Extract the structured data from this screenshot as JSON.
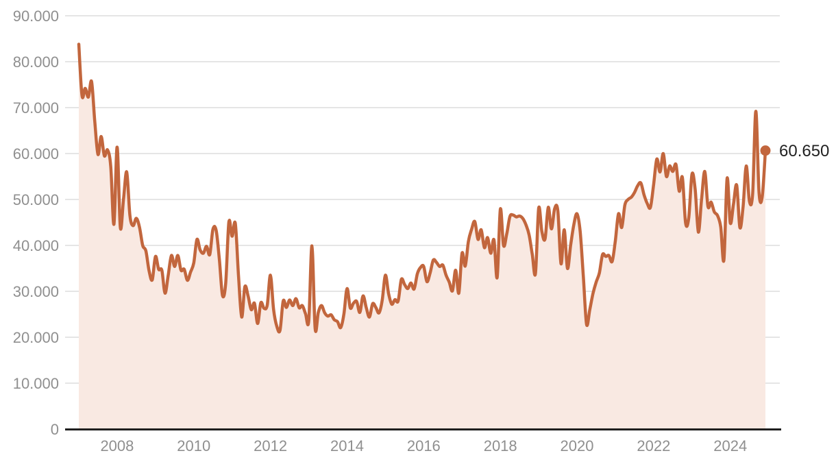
{
  "chart_data": {
    "type": "area",
    "title": "",
    "series_name": "monthly-price-series",
    "frequency": "monthly",
    "start_period": "2007-01",
    "end_period": "2024-12",
    "values": [
      83800,
      72600,
      74200,
      72300,
      75700,
      67000,
      59800,
      63700,
      59500,
      60800,
      57200,
      44600,
      61400,
      43900,
      50000,
      56000,
      46500,
      44300,
      45900,
      44000,
      40000,
      38800,
      34500,
      32500,
      37600,
      34800,
      34600,
      29600,
      33500,
      37800,
      35400,
      37800,
      34600,
      34800,
      32400,
      34200,
      36200,
      41300,
      39000,
      38300,
      39800,
      38000,
      43500,
      43300,
      37000,
      29100,
      31800,
      45100,
      42000,
      44800,
      33500,
      24400,
      31000,
      29000,
      26000,
      27400,
      23000,
      27500,
      26300,
      27000,
      33500,
      26000,
      22400,
      21500,
      27900,
      26500,
      28100,
      26900,
      28400,
      26400,
      26900,
      25100,
      23600,
      39900,
      21900,
      25400,
      26900,
      25300,
      24600,
      24900,
      23800,
      23400,
      22100,
      25000,
      30600,
      26400,
      27400,
      27800,
      25400,
      29000,
      26500,
      24400,
      27300,
      26500,
      25300,
      28000,
      33500,
      29500,
      27200,
      28200,
      27900,
      32600,
      31500,
      30600,
      31800,
      30500,
      33800,
      35200,
      35400,
      32100,
      34000,
      36800,
      36300,
      35400,
      35700,
      33500,
      32000,
      30100,
      34600,
      29600,
      38300,
      35500,
      40900,
      43500,
      45200,
      41300,
      43400,
      39500,
      41700,
      38300,
      41200,
      33000,
      47900,
      40000,
      42500,
      46300,
      46600,
      46200,
      46400,
      45900,
      44500,
      42300,
      38000,
      33900,
      48100,
      43000,
      41400,
      48300,
      43600,
      48000,
      47500,
      36000,
      43400,
      35000,
      40000,
      44500,
      46900,
      43000,
      33000,
      22800,
      26000,
      29500,
      32000,
      34000,
      38000,
      37600,
      37800,
      36500,
      41000,
      46900,
      43900,
      48800,
      50000,
      50500,
      51500,
      53000,
      53600,
      51000,
      49100,
      48300,
      53300,
      58800,
      56000,
      60000,
      55000,
      57300,
      56100,
      57600,
      51800,
      54800,
      44900,
      46000,
      55500,
      52200,
      42900,
      50000,
      56100,
      48500,
      49400,
      47300,
      46500,
      44000,
      36800,
      54600,
      44900,
      49000,
      53100,
      43900,
      48400,
      57300,
      49600,
      51300,
      69200,
      51500,
      50600,
      60650
    ],
    "last_value": 60650,
    "last_value_label": "60.650",
    "y_axis": {
      "min": 0,
      "max": 90000,
      "tick_step": 10000,
      "tick_labels": [
        "90.000",
        "80.000",
        "70.000",
        "60.000",
        "50.000",
        "40.000",
        "30.000",
        "20.000",
        "10.000",
        "0"
      ],
      "tick_values": [
        90000,
        80000,
        70000,
        60000,
        50000,
        40000,
        30000,
        20000,
        10000,
        0
      ]
    },
    "x_axis": {
      "tick_labels": [
        "2008",
        "2010",
        "2012",
        "2014",
        "2016",
        "2018",
        "2020",
        "2022",
        "2024"
      ],
      "tick_month_index": [
        12,
        36,
        60,
        84,
        108,
        132,
        156,
        180,
        204
      ]
    },
    "grid": true,
    "legend": false
  },
  "style": {
    "line_color": "#c2663d",
    "fill_color": "#f9e9e2",
    "grid_color": "#e5e5e5",
    "axis_line_color": "#1f1f1f",
    "tick_label_color": "#8f8f8f",
    "end_label_color": "#222222",
    "background": "#ffffff"
  }
}
